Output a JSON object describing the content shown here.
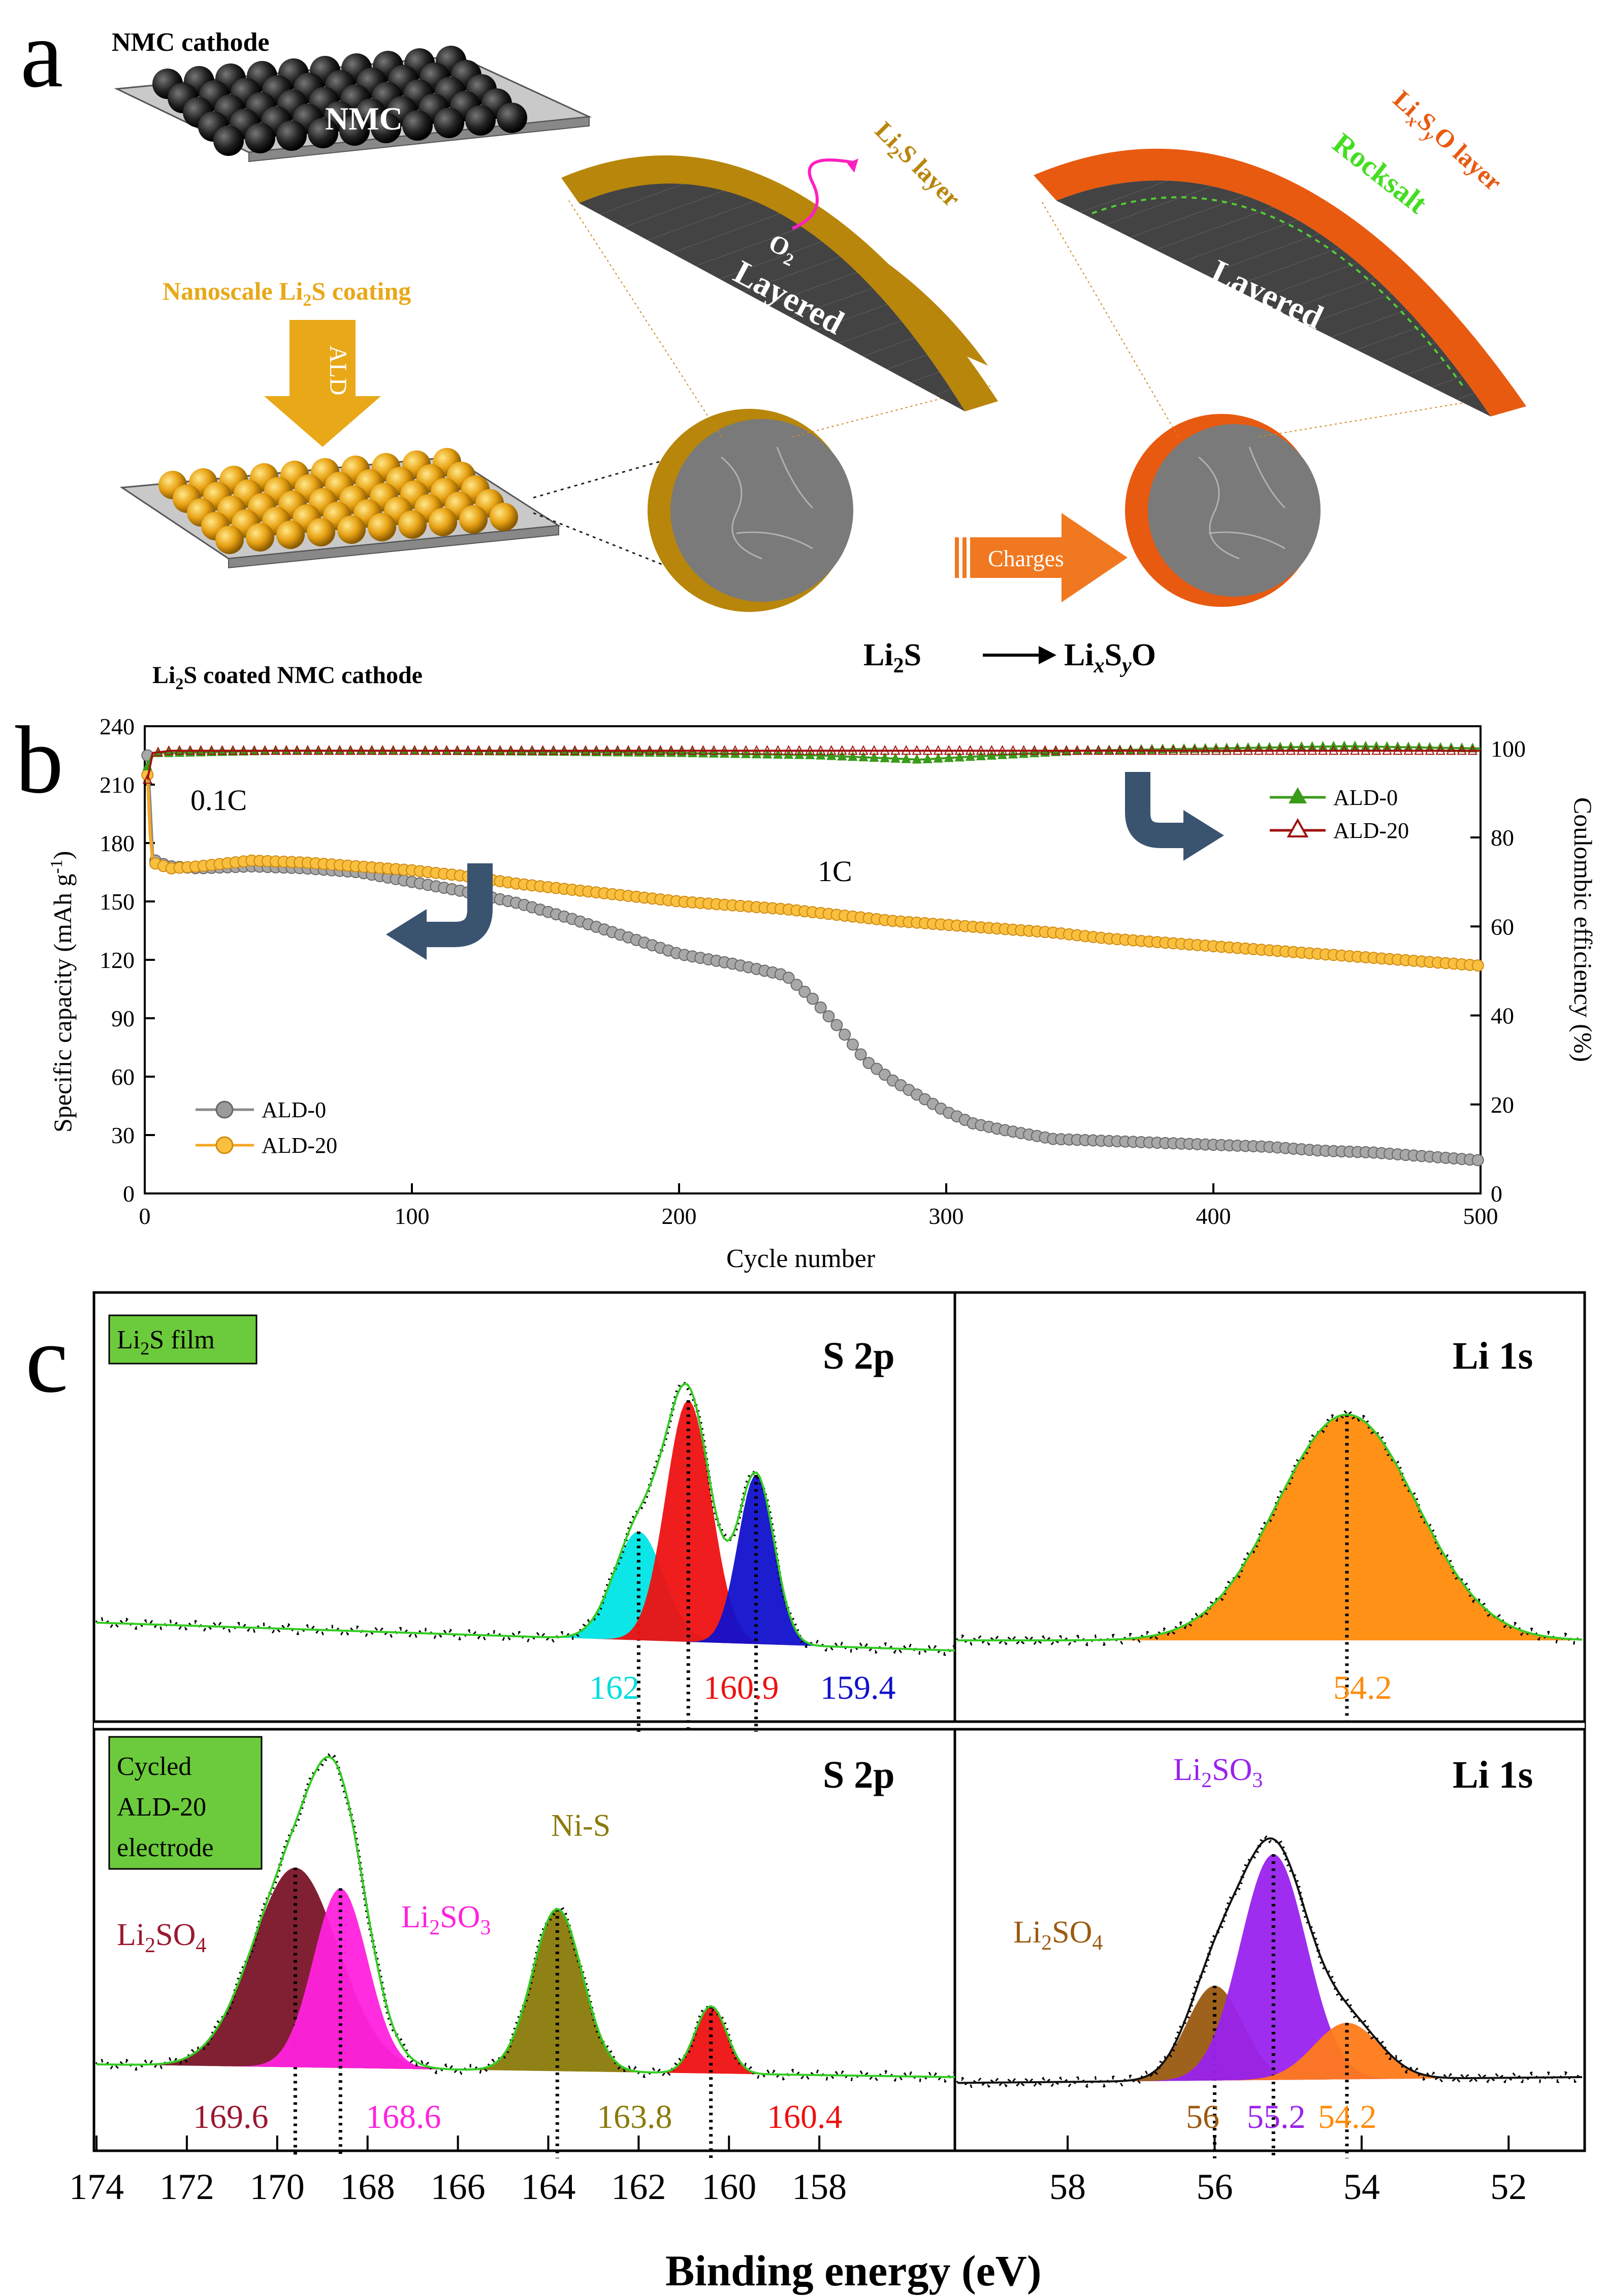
{
  "panel_a": {
    "letter": "a",
    "nmc_cathode_label": "NMC cathode",
    "nmc_label": "NMC",
    "coating_label": "Nanoscale Li",
    "coating_sub": "2",
    "coating_tail": "S coating",
    "ald_label": "ALD",
    "coated_cathode_label": "Li",
    "coated_cathode_sub": "2",
    "coated_cathode_tail": "S coated NMC cathode",
    "li2s_layer_label": "Li",
    "li2s_layer_sub": "2",
    "li2s_layer_tail": "S layer",
    "o2_label": "O",
    "o2_sub": "2",
    "layered_label": "Layered",
    "lisxo_layer_label": "Li",
    "lisxo_layer_x": "x",
    "lisxo_layer_s": "S",
    "lisxo_layer_y": "y",
    "lisxo_layer_tail": "O layer",
    "rocksalt_label": "Rocksalt",
    "charges_label": "Charges",
    "reaction_left": "Li",
    "reaction_left_sub": "2",
    "reaction_left_tail": "S",
    "reaction_right": "Li",
    "reaction_right_x": "x",
    "reaction_right_s": "S",
    "reaction_right_y": "y",
    "reaction_right_tail": "O",
    "colors": {
      "ald_arrow": "#e8a818",
      "li2s_shell": "#b8860b",
      "lisxo_shell": "#e85a10",
      "charges_arrow": "#f07820"
    }
  },
  "panel_b": {
    "letter": "b",
    "rate_01c": "0.1C",
    "rate_1c": "1C",
    "ylabel_left": "Specific capacity (mAh g",
    "ylabel_left_sup": "-1",
    "ylabel_left_tail": ")",
    "ylabel_right": "Coulombic efficiency (%)",
    "xlabel": "Cycle number",
    "legend_capacity": [
      "ALD-0",
      "ALD-20"
    ],
    "legend_ce": [
      "ALD-0",
      "ALD-20"
    ]
  },
  "panel_c": {
    "letter": "c",
    "tag_top": "Li",
    "tag_top_sub": "2",
    "tag_top_tail": "S film",
    "tag_bottom_lines": [
      "Cycled",
      "ALD-20",
      "electrode"
    ],
    "s2p_title": "S 2p",
    "li1s_title": "Li 1s",
    "xlabel": "Binding energy (eV)",
    "top_s2p_peaks": [
      "162",
      "160.9",
      "159.4"
    ],
    "top_li1s_peaks": [
      "54.2"
    ],
    "bottom_s2p_peaks": [
      "169.6",
      "168.6",
      "163.8",
      "160.4"
    ],
    "bottom_li1s_peaks": [
      "56",
      "55.2",
      "54.2"
    ],
    "bottom_s2p_species": {
      "a": "Li",
      "a_sub": "2",
      "a_tail": "SO",
      "a_sub2": "4",
      "b": "Li",
      "b_sub": "2",
      "b_tail": "SO",
      "b_sub2": "3",
      "c": "Ni-S"
    },
    "bottom_li1s_species": {
      "a": "Li",
      "a_sub": "2",
      "a_tail": "SO",
      "a_sub2": "3",
      "b": "Li",
      "b_sub": "2",
      "b_tail": "SO",
      "b_sub2": "4"
    }
  },
  "chart_data": [
    {
      "type": "line",
      "id": "cycling",
      "title": "",
      "xlabel": "Cycle number",
      "ylabel": "Specific capacity (mAh g-1)",
      "y2label": "Coulombic efficiency (%)",
      "xlim": [
        0,
        500
      ],
      "ylim": [
        0,
        240
      ],
      "y2lim": [
        0,
        105
      ],
      "xticks": [
        0,
        100,
        200,
        300,
        400,
        500
      ],
      "yticks": [
        0,
        30,
        60,
        90,
        120,
        150,
        180,
        210,
        240
      ],
      "y2ticks": [
        0,
        20,
        40,
        60,
        80,
        100
      ],
      "series": [
        {
          "name": "ALD-0",
          "axis": "capacity",
          "color": "#8a8a8a",
          "x": [
            1,
            2,
            3,
            5,
            10,
            20,
            40,
            60,
            80,
            100,
            120,
            140,
            160,
            180,
            200,
            220,
            240,
            250,
            260,
            270,
            280,
            290,
            300,
            310,
            320,
            340,
            360,
            380,
            400,
            420,
            440,
            460,
            480,
            500
          ],
          "y": [
            225,
            200,
            172,
            170,
            168,
            167,
            168,
            167,
            165,
            160,
            155,
            149,
            141,
            132,
            123,
            118,
            112,
            100,
            85,
            68,
            58,
            50,
            42,
            36,
            33,
            28,
            27,
            26,
            25,
            24,
            22,
            21,
            19,
            17
          ]
        },
        {
          "name": "ALD-20",
          "axis": "capacity",
          "color": "#f5a623",
          "x": [
            1,
            2,
            3,
            5,
            10,
            20,
            40,
            60,
            80,
            100,
            120,
            140,
            160,
            180,
            200,
            220,
            240,
            260,
            280,
            300,
            320,
            340,
            360,
            380,
            400,
            420,
            440,
            460,
            480,
            500
          ],
          "y": [
            215,
            185,
            170,
            169,
            167,
            168,
            171,
            170,
            168,
            166,
            163,
            159,
            156,
            153,
            150,
            148,
            146,
            143,
            140,
            138,
            136,
            134,
            131,
            129,
            127,
            125,
            123,
            121,
            119,
            117
          ]
        },
        {
          "name": "ALD-0 CE",
          "axis": "ce",
          "color": "#3a9a1a",
          "x": [
            1,
            3,
            10,
            50,
            100,
            150,
            200,
            250,
            290,
            320,
            350,
            400,
            450,
            500
          ],
          "y": [
            96,
            99,
            99,
            99.5,
            99.5,
            99.3,
            99,
            98.5,
            97.5,
            98.5,
            99.5,
            100,
            100.5,
            100
          ]
        },
        {
          "name": "ALD-20 CE",
          "axis": "ce",
          "color": "#a01010",
          "x": [
            1,
            3,
            10,
            50,
            100,
            150,
            200,
            250,
            300,
            350,
            400,
            450,
            500
          ],
          "y": [
            93,
            99,
            99.5,
            99.5,
            99.5,
            99.5,
            99.5,
            99.5,
            99.5,
            99.5,
            99.5,
            99.5,
            99.5
          ]
        }
      ]
    },
    {
      "type": "area",
      "id": "xps",
      "xlabel": "Binding energy (eV)",
      "xlim_s2p": [
        174,
        155
      ],
      "xlim_li1s": [
        59.5,
        51
      ],
      "xticks_s2p": [
        174,
        172,
        170,
        168,
        166,
        164,
        162,
        160,
        158
      ],
      "xticks_li1s": [
        58,
        56,
        54,
        52
      ],
      "top_s2p_components": [
        {
          "center": 162,
          "height": 0.45,
          "width": 0.55,
          "color": "#00e5e5"
        },
        {
          "center": 160.9,
          "height": 1.0,
          "width": 0.5,
          "color": "#ee1111"
        },
        {
          "center": 159.4,
          "height": 0.7,
          "width": 0.4,
          "color": "#1111cc"
        }
      ],
      "top_li1s_components": [
        {
          "center": 54.2,
          "height": 1.0,
          "width": 0.95,
          "color": "#ff8c0a"
        }
      ],
      "bottom_s2p_components": [
        {
          "center": 169.6,
          "height": 0.8,
          "width": 0.95,
          "color": "#7a1428"
        },
        {
          "center": 168.6,
          "height": 0.72,
          "width": 0.6,
          "color": "#ff22dd"
        },
        {
          "center": 163.8,
          "height": 0.65,
          "width": 0.55,
          "color": "#8a7a0a"
        },
        {
          "center": 160.4,
          "height": 0.27,
          "width": 0.35,
          "color": "#ee1111"
        }
      ],
      "bottom_li1s_components": [
        {
          "center": 56,
          "height": 0.42,
          "width": 0.38,
          "color": "#9a5a10"
        },
        {
          "center": 55.2,
          "height": 1.0,
          "width": 0.45,
          "color": "#9922ee"
        },
        {
          "center": 54.2,
          "height": 0.25,
          "width": 0.45,
          "color": "#ff7a1a"
        }
      ]
    }
  ]
}
